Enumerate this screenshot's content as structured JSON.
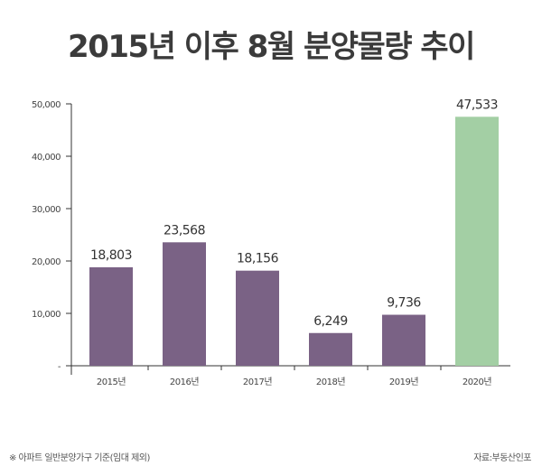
{
  "chart_data": {
    "type": "bar",
    "title": "2015년 이후 8월 분양물량 추이",
    "categories": [
      "2015년",
      "2016년",
      "2017년",
      "2018년",
      "2019년",
      "2020년"
    ],
    "values": [
      18803,
      23568,
      18156,
      6249,
      9736,
      47533
    ],
    "value_labels": [
      "18,803",
      "23,568",
      "18,156",
      "6,249",
      "9,736",
      "47,533"
    ],
    "ylim": [
      0,
      50000
    ],
    "yticks": [
      0,
      10000,
      20000,
      30000,
      40000,
      50000
    ],
    "ytick_labels": [
      "-",
      "10,000",
      "20,000",
      "30,000",
      "40,000",
      "50,000"
    ],
    "grid": false,
    "colors": [
      "#7a6285",
      "#7a6285",
      "#7a6285",
      "#7a6285",
      "#7a6285",
      "#a3cfa4"
    ],
    "xlabel": "",
    "ylabel": ""
  },
  "footer": {
    "note": "※ 아파트 일반분양가구 기준(임대 제외)",
    "source": "자료:부동산인포"
  }
}
